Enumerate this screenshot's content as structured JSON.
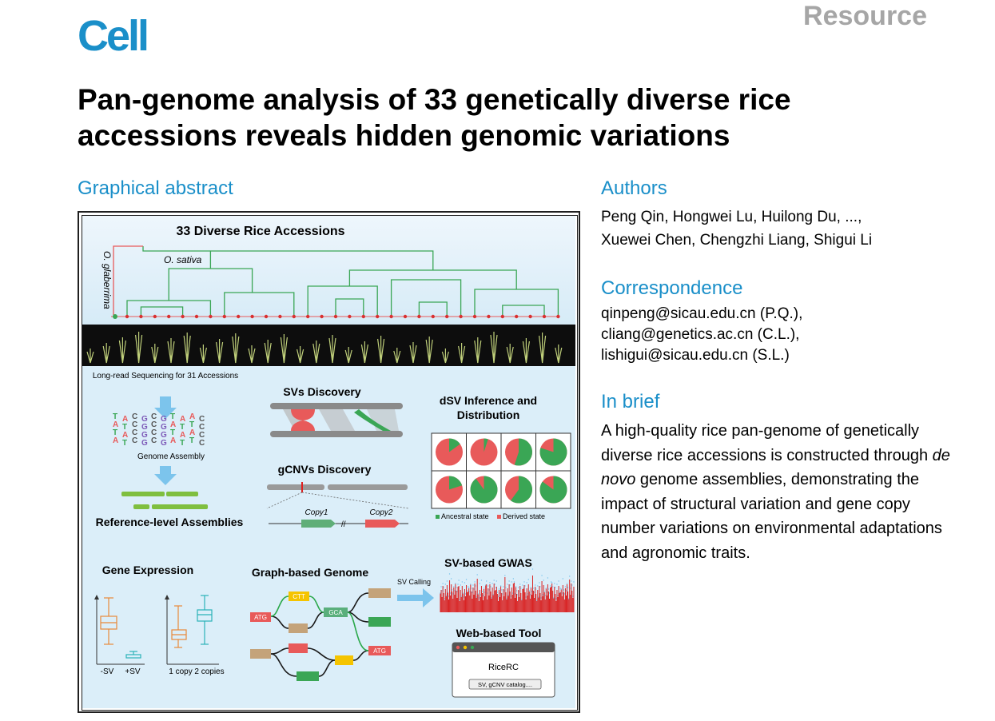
{
  "header": {
    "journal": "Cell",
    "article_type": "Resource"
  },
  "title": "Pan-genome analysis of 33 genetically diverse rice accessions reveals hidden genomic variations",
  "graphical_abstract": {
    "heading": "Graphical abstract",
    "panel_title": "33 Diverse Rice Accessions",
    "tree_label_sativa": "O. sativa",
    "tree_label_glaberrima": "O. glaberrima",
    "seq_label": "Long-read Sequencing for 31 Accessions",
    "assembly_label": "Genome Assembly",
    "assemblies_label": "Reference-level Assemblies",
    "svs_label": "SVs Discovery",
    "gcnv_label": "gCNVs Discovery",
    "copy1": "Copy1",
    "copy2": "Copy2",
    "dsv_label": "dSV Inference and Distribution",
    "legend_ancestral": "Ancestral state",
    "legend_derived": "Derived state",
    "gene_expr_label": "Gene Expression",
    "minus_sv": "-SV",
    "plus_sv": "+SV",
    "copy_1": "1 copy",
    "copy_2": "2 copies",
    "graph_genome_label": "Graph-based Genome",
    "sv_calling_label": "SV Calling",
    "gwas_label": "SV-based GWAS",
    "web_tool_label": "Web-based Tool",
    "ricerc": "RiceRC",
    "catalog_button": "SV, gCNV catalog....",
    "node_ctt": "CTT",
    "node_atg1": "ATG",
    "node_gca": "GCA",
    "node_atg2": "ATG",
    "colors": {
      "green": "#3aa655",
      "red": "#e85a5a",
      "blue_bg": "#dbeef9",
      "orange": "#e8893a",
      "teal": "#2bb3b8"
    }
  },
  "authors": {
    "heading": "Authors",
    "line1": "Peng Qin, Hongwei Lu, Huilong Du, ...,",
    "line2": "Xuewei Chen, Chengzhi Liang, Shigui Li"
  },
  "correspondence": {
    "heading": "Correspondence",
    "email1": "qinpeng@sicau.edu.cn (P.Q.),",
    "email2": "cliang@genetics.ac.cn (C.L.),",
    "email3": "lishigui@sicau.edu.cn (S.L.)"
  },
  "in_brief": {
    "heading": "In brief",
    "text_before": "A high-quality rice pan-genome of genetically diverse rice accessions is constructed through ",
    "text_italic": "de novo",
    "text_after": " genome assemblies, demonstrating the impact of structural variation and gene copy number variations on environmental adaptations and agronomic traits."
  }
}
